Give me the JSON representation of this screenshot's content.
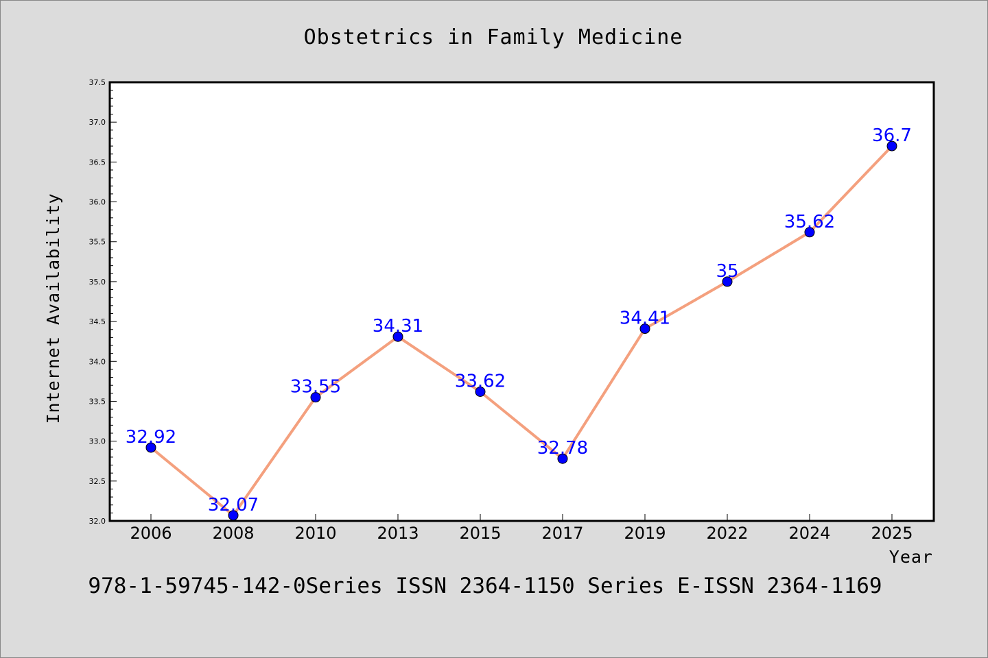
{
  "chart_data": {
    "type": "line",
    "title": "Obstetrics in Family Medicine",
    "xlabel": "Year",
    "ylabel": "Internet Availability",
    "categories": [
      "2006",
      "2008",
      "2010",
      "2013",
      "2015",
      "2017",
      "2019",
      "2022",
      "2024",
      "2025"
    ],
    "series": [
      {
        "values": [
          32.92,
          32.07,
          33.55,
          34.31,
          33.62,
          32.78,
          34.41,
          35,
          35.62,
          36.7
        ],
        "labels": [
          "32.92",
          "32.07",
          "33.55",
          "34.31",
          "33.62",
          "32.78",
          "34.41",
          "35",
          "35.62",
          "36.7"
        ]
      }
    ],
    "ylim": [
      32.0,
      37.5
    ],
    "yticks": [
      "32.0",
      "32.5",
      "33.0",
      "33.5",
      "34.0",
      "34.5",
      "35.0",
      "35.5",
      "36.0",
      "36.5",
      "37.0",
      "37.5"
    ],
    "grid": false,
    "line_color": "#f4a07e",
    "marker_color": "#0000ff",
    "label_color": "#0000ff",
    "background_color": "#dcdcdc",
    "plot_background_color": "#ffffff"
  },
  "footer": {
    "text": "978-1-59745-142-0Series ISSN 2364-1150 Series E-ISSN 2364-1169"
  }
}
